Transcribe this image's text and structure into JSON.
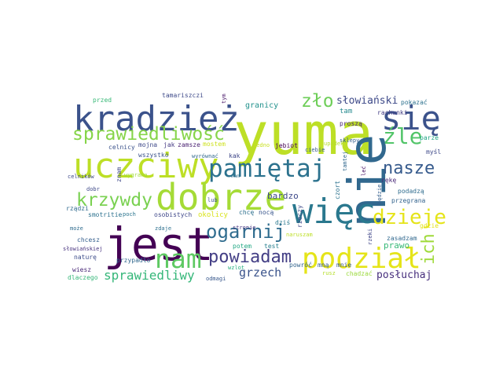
{
  "words": [
    {
      "text": "yuma",
      "color": "#bddf26"
    },
    {
      "text": "kradzież",
      "color": "#3b528b"
    },
    {
      "text": "jest",
      "color": "#440154"
    },
    {
      "text": "uczciwy",
      "color": "#bddf26"
    },
    {
      "text": "dobrze",
      "color": "#a5db36"
    },
    {
      "text": "nie",
      "color": "#31688e"
    },
    {
      "text": "się",
      "color": "#3b528b"
    },
    {
      "text": "więc",
      "color": "#2a788e"
    },
    {
      "text": "pamiętaj",
      "color": "#2c728e"
    },
    {
      "text": "sprawiedliwość",
      "color": "#86d549"
    },
    {
      "text": "zło",
      "color": "#6ece58"
    },
    {
      "text": "podział",
      "color": "#e5e419"
    },
    {
      "text": "nam",
      "color": "#5ec962"
    },
    {
      "text": "powiadam",
      "color": "#433e85"
    },
    {
      "text": "krzywdy",
      "color": "#7ad151"
    },
    {
      "text": "ogarnij",
      "color": "#2f6c8e"
    },
    {
      "text": "nasze",
      "color": "#375b8d"
    },
    {
      "text": "dzieje",
      "color": "#e5e419"
    },
    {
      "text": "źle",
      "color": "#52c569"
    },
    {
      "text": "ich",
      "color": "#9fda3a"
    },
    {
      "text": "sprawiedliwy",
      "color": "#35b779"
    },
    {
      "text": "grzech",
      "color": "#3a538b"
    },
    {
      "text": "posłuchaj",
      "color": "#472f7d"
    },
    {
      "text": "słowiański",
      "color": "#3e4a89"
    },
    {
      "text": "bardzo",
      "color": "#3e4989"
    },
    {
      "text": "granicy",
      "color": "#21918c"
    },
    {
      "text": "prawo",
      "color": "#38b977"
    },
    {
      "text": "rzeczy",
      "color": "#3e4a89"
    },
    {
      "text": "tam",
      "color": "#23898e"
    },
    {
      "text": "test",
      "color": "#277f8e"
    },
    {
      "text": "pokazać",
      "color": "#2c718e"
    },
    {
      "text": "rachunki",
      "color": "#433d84"
    },
    {
      "text": "proszą",
      "color": "#482475"
    },
    {
      "text": "sklepy",
      "color": "#355f8d"
    },
    {
      "text": "parze",
      "color": "#21a585"
    },
    {
      "text": "myśl",
      "color": "#3e4989"
    },
    {
      "text": "gdzie",
      "color": "#e5e419"
    },
    {
      "text": "rękę",
      "color": "#482677"
    },
    {
      "text": "będzie",
      "color": "#355f8d"
    },
    {
      "text": "podadzą",
      "color": "#2f6c8e"
    },
    {
      "text": "przegrana",
      "color": "#33638d"
    },
    {
      "text": "zasadzam",
      "color": "#31688e"
    },
    {
      "text": "rzeki",
      "color": "#404688"
    },
    {
      "text": "chadzać",
      "color": "#9bd93c"
    },
    {
      "text": "rusz",
      "color": "#b5de2b"
    },
    {
      "text": "mną",
      "color": "#365d8d"
    },
    {
      "text": "mnie",
      "color": "#38588c"
    },
    {
      "text": "czort",
      "color": "#2c728e"
    },
    {
      "text": "leć",
      "color": "#471063"
    },
    {
      "text": "tamtej",
      "color": "#31688e"
    },
    {
      "text": "upadek",
      "color": "#b5de2b"
    },
    {
      "text": "ciebie",
      "color": "#365c8d"
    },
    {
      "text": "jebiot",
      "color": "#440154"
    },
    {
      "text": "jedno",
      "color": "#c8e020"
    },
    {
      "text": "naruszam",
      "color": "#bddf26"
    },
    {
      "text": "dziś",
      "color": "#2a788e"
    },
    {
      "text": "powróć",
      "color": "#33638d"
    },
    {
      "text": "chcę",
      "color": "#2d708e"
    },
    {
      "text": "nocą",
      "color": "#39568c"
    },
    {
      "text": "stronie",
      "color": "#46337f"
    },
    {
      "text": "potem",
      "color": "#22a884"
    },
    {
      "text": "wzlot",
      "color": "#2ab07f"
    },
    {
      "text": "okolicy",
      "color": "#d8e219"
    },
    {
      "text": "osobistych",
      "color": "#3f4889"
    },
    {
      "text": "lub",
      "color": "#3b528b"
    },
    {
      "text": "tym",
      "color": "#481668"
    },
    {
      "text": "kak",
      "color": "#3f4788"
    },
    {
      "text": "mostem",
      "color": "#cde11d"
    },
    {
      "text": "zamsze",
      "color": "#481f70"
    },
    {
      "text": "jak",
      "color": "#443a83"
    },
    {
      "text": "wyrównać",
      "color": "#31688e"
    },
    {
      "text": "znam",
      "color": "#3f4889"
    },
    {
      "text": "mam",
      "color": "#2d708e"
    },
    {
      "text": "mojna",
      "color": "#3e4989"
    },
    {
      "text": "celnicy",
      "color": "#3b528b"
    },
    {
      "text": "wszystko",
      "color": "#3b528b"
    },
    {
      "text": "tamariszczi",
      "color": "#3e4a89"
    },
    {
      "text": "przed",
      "color": "#38b977"
    },
    {
      "text": "celników",
      "color": "#3e4989"
    },
    {
      "text": "dobr",
      "color": "#3e4989"
    },
    {
      "text": "rządzi",
      "color": "#306a8e"
    },
    {
      "text": "smotritie",
      "color": "#2c718e"
    },
    {
      "text": "poch",
      "color": "#2b758e"
    },
    {
      "text": "wygrana",
      "color": "#a0da39"
    },
    {
      "text": "zdaje",
      "color": "#2d708e"
    },
    {
      "text": "może",
      "color": "#2f6c8e"
    },
    {
      "text": "chcesz",
      "color": "#355f8d"
    },
    {
      "text": "słowiańskiej",
      "color": "#46327e"
    },
    {
      "text": "naturę",
      "color": "#3d4e8a"
    },
    {
      "text": "przypadło",
      "color": "#31688e"
    },
    {
      "text": "wiesz",
      "color": "#482878"
    },
    {
      "text": "dlaczego",
      "color": "#35b779"
    },
    {
      "text": "odmagi",
      "color": "#38588c"
    }
  ]
}
